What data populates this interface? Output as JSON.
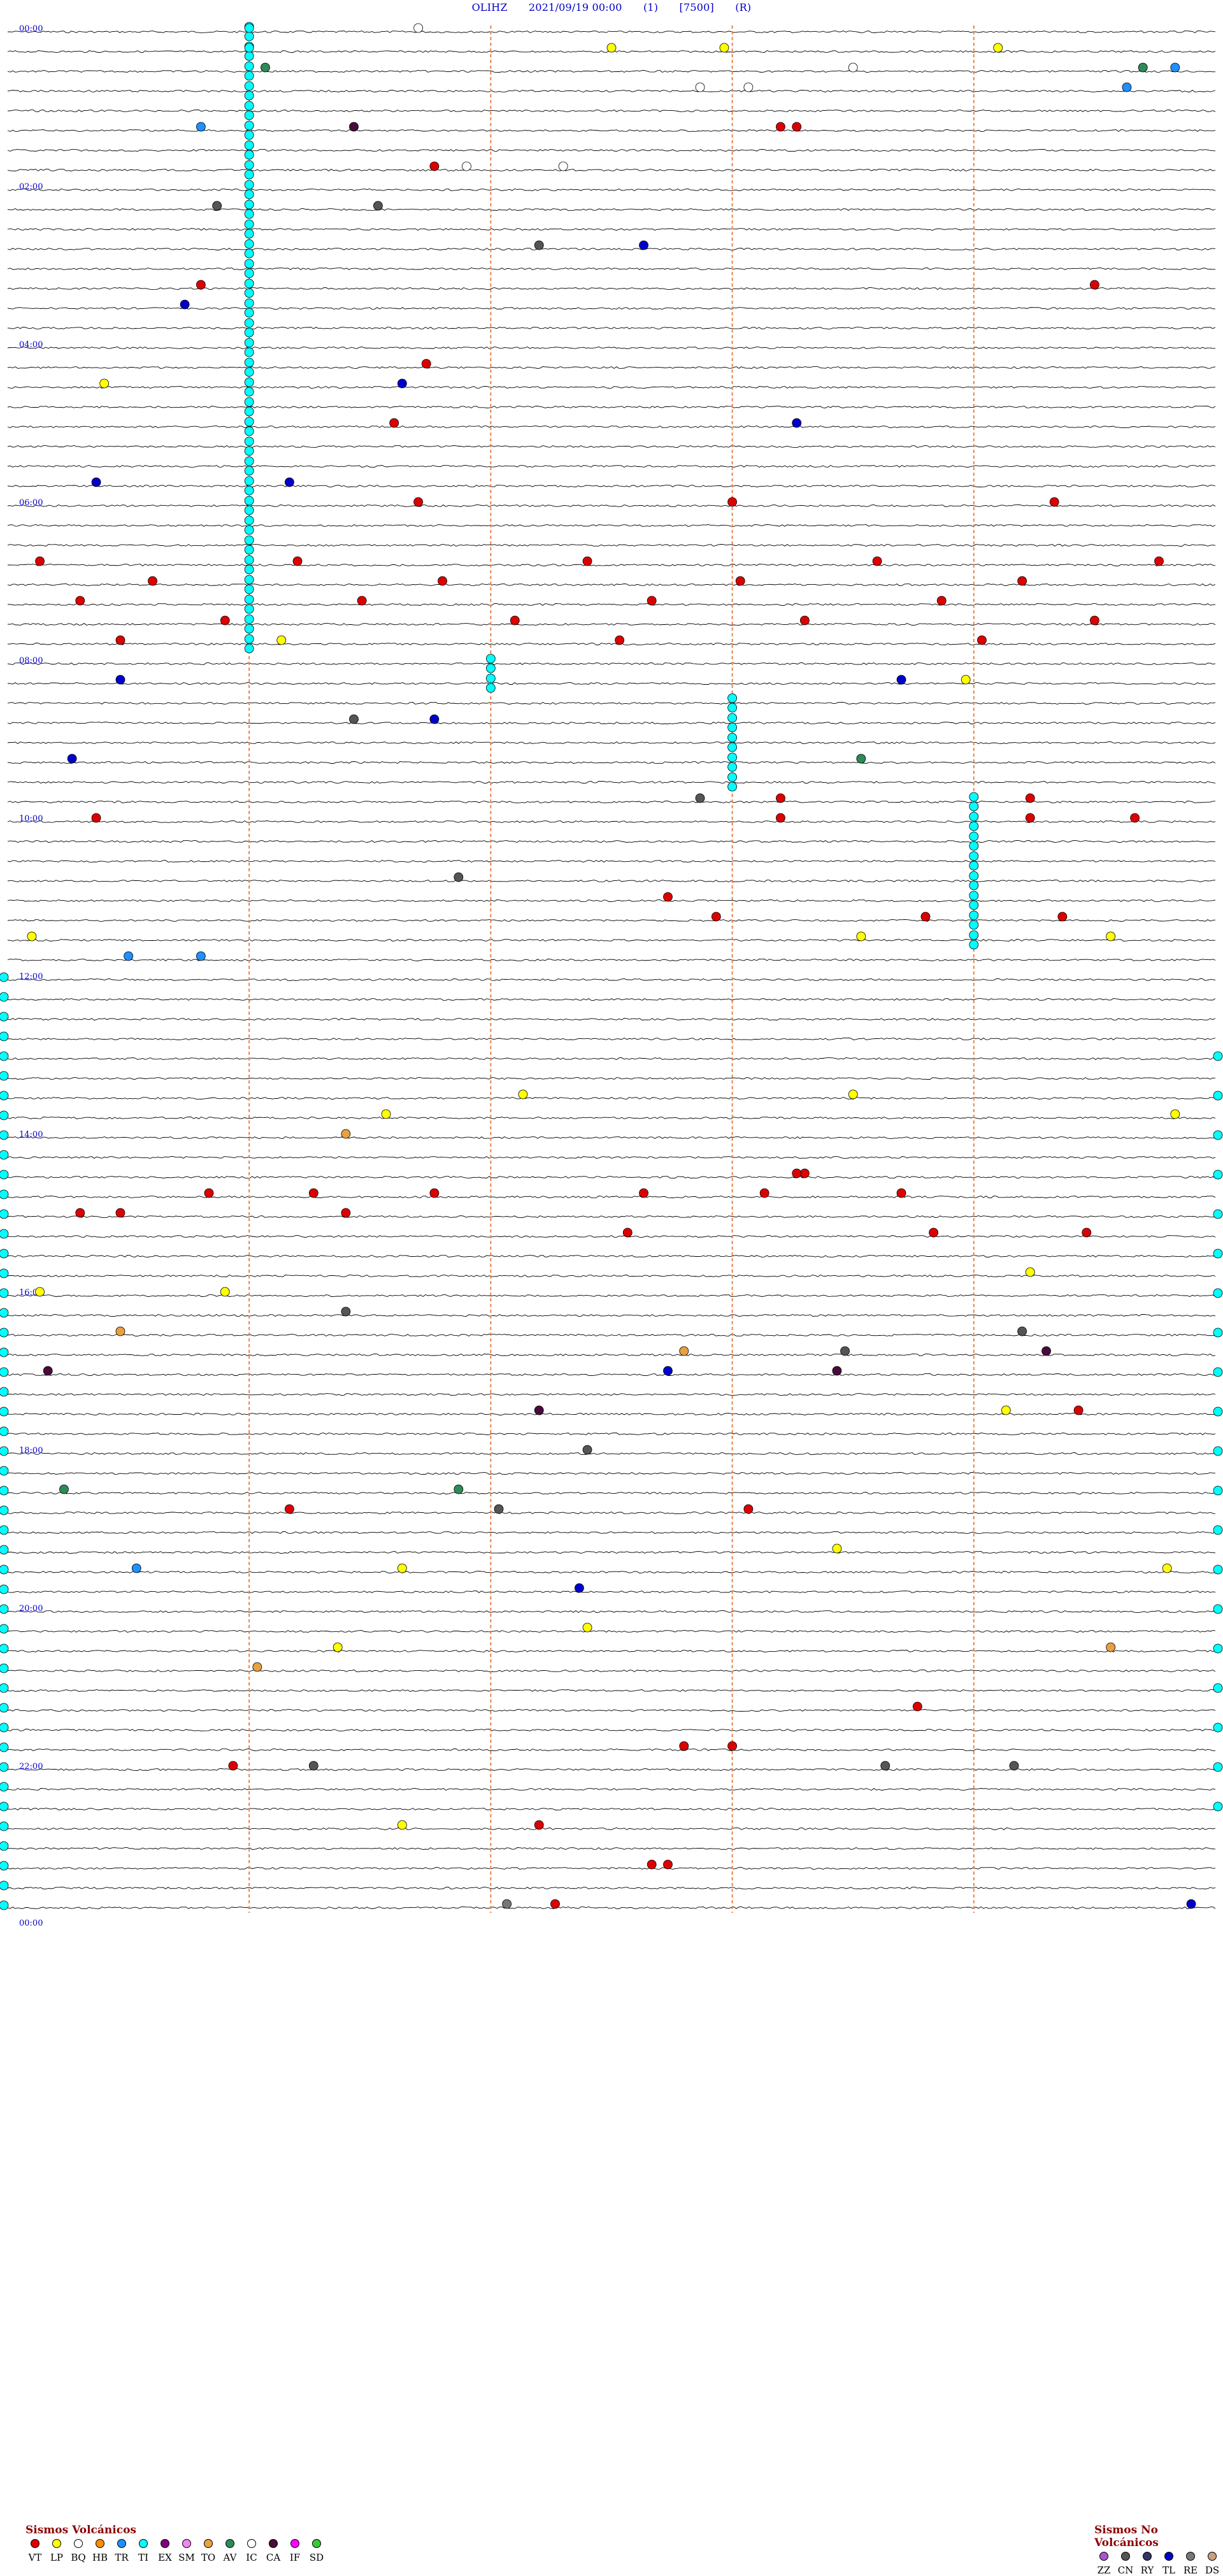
{
  "header": {
    "station": "OLIHZ",
    "datetime": "2021/09/19 00:00",
    "code1": "(1)",
    "code2": "[7500]",
    "code3": "(R)"
  },
  "chart_data": {
    "type": "helicorder",
    "rows": 96,
    "minutes_per_row": 15,
    "hour_labels": [
      "00:00",
      "02:00",
      "04:00",
      "06:00",
      "08:00",
      "10:00",
      "12:00",
      "14:00",
      "16:00",
      "18:00",
      "20:00",
      "22:00",
      "00:00"
    ],
    "marker_lines_minutes": [
      3,
      6,
      9,
      12
    ],
    "category_colors": {
      "VT": "#dd0000",
      "LP": "#ffff00",
      "BQ": "#ffffff",
      "HB": "#ff8c00",
      "TR": "#1e90ff",
      "TI": "#00ffff",
      "EX": "#800080",
      "SM": "#ee88ee",
      "TO": "#e8a040",
      "AV": "#2e8b57",
      "IC": "#ffffff",
      "CA": "#4b0a3c",
      "IF": "#ff00ff",
      "SD": "#33cc33",
      "ZZ": "#aa55cc",
      "CN": "#555555",
      "RY": "#333366",
      "TL": "#0000cc",
      "RE": "#777777",
      "DS": "#c8a080"
    },
    "events": [
      {
        "row": 0,
        "minute": 3.0,
        "type": "TI"
      },
      {
        "row": 0,
        "minute": 5.1,
        "type": "BQ"
      },
      {
        "row": 1,
        "minute": 3.0,
        "type": "TI"
      },
      {
        "row": 1,
        "minute": 12.3,
        "type": "LP"
      },
      {
        "row": 1,
        "minute": 7.5,
        "type": "LP"
      },
      {
        "row": 1,
        "minute": 8.9,
        "type": "LP"
      },
      {
        "row": 2,
        "minute": 3.2,
        "type": "AV"
      },
      {
        "row": 2,
        "minute": 14.5,
        "type": "TR"
      },
      {
        "row": 2,
        "minute": 14.1,
        "type": "AV"
      },
      {
        "row": 2,
        "minute": 10.5,
        "type": "BQ"
      },
      {
        "row": 3,
        "minute": 13.9,
        "type": "TR"
      },
      {
        "row": 3,
        "minute": 8.6,
        "type": "BQ"
      },
      {
        "row": 3,
        "minute": 9.2,
        "type": "BQ"
      },
      {
        "row": 5,
        "minute": 2.4,
        "type": "TR"
      },
      {
        "row": 5,
        "minute": 4.3,
        "type": "CA"
      },
      {
        "row": 5,
        "minute": 9.6,
        "type": "VT"
      },
      {
        "row": 5,
        "minute": 9.8,
        "type": "VT"
      },
      {
        "row": 7,
        "minute": 5.3,
        "type": "VT"
      },
      {
        "row": 7,
        "minute": 5.7,
        "type": "BQ"
      },
      {
        "row": 7,
        "minute": 6.9,
        "type": "BQ"
      },
      {
        "row": 9,
        "minute": 2.6,
        "type": "CN"
      },
      {
        "row": 9,
        "minute": 4.6,
        "type": "CN"
      },
      {
        "row": 11,
        "minute": 7.9,
        "type": "TL"
      },
      {
        "row": 11,
        "minute": 6.6,
        "type": "CN"
      },
      {
        "row": 13,
        "minute": 2.4,
        "type": "VT"
      },
      {
        "row": 13,
        "minute": 13.5,
        "type": "VT"
      },
      {
        "row": 14,
        "minute": 2.2,
        "type": "TL"
      },
      {
        "row": 17,
        "minute": 5.2,
        "type": "VT"
      },
      {
        "row": 18,
        "minute": 1.2,
        "type": "LP"
      },
      {
        "row": 18,
        "minute": 4.9,
        "type": "TL"
      },
      {
        "row": 20,
        "minute": 4.8,
        "type": "VT"
      },
      {
        "row": 20,
        "minute": 9.8,
        "type": "TL"
      },
      {
        "row": 23,
        "minute": 1.1,
        "type": "TL"
      },
      {
        "row": 23,
        "minute": 3.5,
        "type": "TL"
      },
      {
        "row": 24,
        "minute": 5.1,
        "type": "VT"
      },
      {
        "row": 24,
        "minute": 9.0,
        "type": "VT"
      },
      {
        "row": 24,
        "minute": 13.0,
        "type": "VT"
      },
      {
        "row": 27,
        "minute": 0.4,
        "type": "VT"
      },
      {
        "row": 27,
        "minute": 3.6,
        "type": "VT"
      },
      {
        "row": 27,
        "minute": 7.2,
        "type": "VT"
      },
      {
        "row": 27,
        "minute": 10.8,
        "type": "VT"
      },
      {
        "row": 27,
        "minute": 14.3,
        "type": "VT"
      },
      {
        "row": 28,
        "minute": 1.8,
        "type": "VT"
      },
      {
        "row": 28,
        "minute": 5.4,
        "type": "VT"
      },
      {
        "row": 28,
        "minute": 9.1,
        "type": "VT"
      },
      {
        "row": 28,
        "minute": 12.6,
        "type": "VT"
      },
      {
        "row": 29,
        "minute": 0.9,
        "type": "VT"
      },
      {
        "row": 29,
        "minute": 4.4,
        "type": "VT"
      },
      {
        "row": 29,
        "minute": 8.0,
        "type": "VT"
      },
      {
        "row": 29,
        "minute": 11.6,
        "type": "VT"
      },
      {
        "row": 30,
        "minute": 2.7,
        "type": "VT"
      },
      {
        "row": 30,
        "minute": 6.3,
        "type": "VT"
      },
      {
        "row": 30,
        "minute": 9.9,
        "type": "VT"
      },
      {
        "row": 30,
        "minute": 13.5,
        "type": "VT"
      },
      {
        "row": 31,
        "minute": 1.4,
        "type": "VT"
      },
      {
        "row": 31,
        "minute": 3.4,
        "type": "LP"
      },
      {
        "row": 31,
        "minute": 7.6,
        "type": "VT"
      },
      {
        "row": 31,
        "minute": 12.1,
        "type": "VT"
      },
      {
        "row": 33,
        "minute": 1.4,
        "type": "TL"
      },
      {
        "row": 33,
        "minute": 11.1,
        "type": "TL"
      },
      {
        "row": 33,
        "minute": 11.9,
        "type": "LP"
      },
      {
        "row": 35,
        "minute": 5.3,
        "type": "TL"
      },
      {
        "row": 35,
        "minute": 4.3,
        "type": "CN"
      },
      {
        "row": 37,
        "minute": 0.8,
        "type": "TL"
      },
      {
        "row": 37,
        "minute": 10.6,
        "type": "AV"
      },
      {
        "row": 39,
        "minute": 8.6,
        "type": "CN"
      },
      {
        "row": 39,
        "minute": 9.6,
        "type": "VT"
      },
      {
        "row": 39,
        "minute": 12.7,
        "type": "VT"
      },
      {
        "row": 40,
        "minute": 1.1,
        "type": "VT"
      },
      {
        "row": 40,
        "minute": 9.6,
        "type": "VT"
      },
      {
        "row": 40,
        "minute": 12.7,
        "type": "VT"
      },
      {
        "row": 40,
        "minute": 14.0,
        "type": "VT"
      },
      {
        "row": 43,
        "minute": 5.6,
        "type": "CN"
      },
      {
        "row": 44,
        "minute": 8.2,
        "type": "VT"
      },
      {
        "row": 45,
        "minute": 8.8,
        "type": "VT"
      },
      {
        "row": 45,
        "minute": 11.4,
        "type": "VT"
      },
      {
        "row": 45,
        "minute": 13.1,
        "type": "VT"
      },
      {
        "row": 46,
        "minute": 0.3,
        "type": "LP"
      },
      {
        "row": 46,
        "minute": 10.6,
        "type": "LP"
      },
      {
        "row": 46,
        "minute": 13.7,
        "type": "LP"
      },
      {
        "row": 47,
        "minute": 1.5,
        "type": "TR"
      },
      {
        "row": 47,
        "minute": 2.4,
        "type": "TR"
      },
      {
        "row": 54,
        "minute": 6.4,
        "type": "LP"
      },
      {
        "row": 54,
        "minute": 10.5,
        "type": "LP"
      },
      {
        "row": 55,
        "minute": 4.7,
        "type": "LP"
      },
      {
        "row": 55,
        "minute": 14.5,
        "type": "LP"
      },
      {
        "row": 56,
        "minute": 4.2,
        "type": "TO"
      },
      {
        "row": 58,
        "minute": 9.9,
        "type": "VT"
      },
      {
        "row": 58,
        "minute": 9.8,
        "type": "VT"
      },
      {
        "row": 59,
        "minute": 2.5,
        "type": "VT"
      },
      {
        "row": 59,
        "minute": 3.8,
        "type": "VT"
      },
      {
        "row": 59,
        "minute": 5.3,
        "type": "VT"
      },
      {
        "row": 59,
        "minute": 7.9,
        "type": "VT"
      },
      {
        "row": 59,
        "minute": 9.4,
        "type": "VT"
      },
      {
        "row": 59,
        "minute": 11.1,
        "type": "VT"
      },
      {
        "row": 60,
        "minute": 0.9,
        "type": "VT"
      },
      {
        "row": 60,
        "minute": 1.4,
        "type": "VT"
      },
      {
        "row": 60,
        "minute": 4.2,
        "type": "VT"
      },
      {
        "row": 61,
        "minute": 7.7,
        "type": "VT"
      },
      {
        "row": 61,
        "minute": 11.5,
        "type": "VT"
      },
      {
        "row": 61,
        "minute": 13.4,
        "type": "VT"
      },
      {
        "row": 63,
        "minute": 12.7,
        "type": "LP"
      },
      {
        "row": 64,
        "minute": 0.4,
        "type": "LP"
      },
      {
        "row": 64,
        "minute": 2.7,
        "type": "LP"
      },
      {
        "row": 65,
        "minute": 4.2,
        "type": "CN"
      },
      {
        "row": 66,
        "minute": 1.4,
        "type": "TO"
      },
      {
        "row": 66,
        "minute": 12.6,
        "type": "CN"
      },
      {
        "row": 67,
        "minute": 10.4,
        "type": "CN"
      },
      {
        "row": 67,
        "minute": 8.4,
        "type": "TO"
      },
      {
        "row": 67,
        "minute": 12.9,
        "type": "CA"
      },
      {
        "row": 68,
        "minute": 0.5,
        "type": "CA"
      },
      {
        "row": 68,
        "minute": 8.2,
        "type": "TL"
      },
      {
        "row": 68,
        "minute": 10.3,
        "type": "CA"
      },
      {
        "row": 70,
        "minute": 6.6,
        "type": "CA"
      },
      {
        "row": 70,
        "minute": 12.4,
        "type": "LP"
      },
      {
        "row": 70,
        "minute": 13.3,
        "type": "VT"
      },
      {
        "row": 72,
        "minute": 7.2,
        "type": "CN"
      },
      {
        "row": 74,
        "minute": 0.7,
        "type": "AV"
      },
      {
        "row": 74,
        "minute": 5.6,
        "type": "AV"
      },
      {
        "row": 75,
        "minute": 3.5,
        "type": "VT"
      },
      {
        "row": 75,
        "minute": 6.1,
        "type": "CN"
      },
      {
        "row": 75,
        "minute": 9.2,
        "type": "VT"
      },
      {
        "row": 77,
        "minute": 10.3,
        "type": "LP"
      },
      {
        "row": 78,
        "minute": 1.6,
        "type": "TR"
      },
      {
        "row": 78,
        "minute": 4.9,
        "type": "LP"
      },
      {
        "row": 78,
        "minute": 14.4,
        "type": "LP"
      },
      {
        "row": 79,
        "minute": 7.1,
        "type": "TL"
      },
      {
        "row": 81,
        "minute": 7.2,
        "type": "LP"
      },
      {
        "row": 82,
        "minute": 4.1,
        "type": "LP"
      },
      {
        "row": 82,
        "minute": 13.7,
        "type": "TO"
      },
      {
        "row": 83,
        "minute": 3.1,
        "type": "TO"
      },
      {
        "row": 85,
        "minute": 11.3,
        "type": "VT"
      },
      {
        "row": 87,
        "minute": 8.4,
        "type": "VT"
      },
      {
        "row": 87,
        "minute": 9.0,
        "type": "VT"
      },
      {
        "row": 88,
        "minute": 2.8,
        "type": "VT"
      },
      {
        "row": 88,
        "minute": 3.8,
        "type": "CN"
      },
      {
        "row": 88,
        "minute": 10.9,
        "type": "CN"
      },
      {
        "row": 88,
        "minute": 12.5,
        "type": "CN"
      },
      {
        "row": 91,
        "minute": 4.9,
        "type": "LP"
      },
      {
        "row": 91,
        "minute": 6.6,
        "type": "VT"
      },
      {
        "row": 93,
        "minute": 8.0,
        "type": "VT"
      },
      {
        "row": 93,
        "minute": 8.2,
        "type": "VT"
      },
      {
        "row": 95,
        "minute": 6.2,
        "type": "RE"
      },
      {
        "row": 95,
        "minute": 6.8,
        "type": "VT"
      },
      {
        "row": 95,
        "minute": 14.7,
        "type": "TL"
      }
    ],
    "tremor_columns": [
      {
        "minute": 3.0,
        "from_row": 0,
        "to_row": 31
      },
      {
        "minute": 6.0,
        "from_row": 32,
        "to_row": 33
      },
      {
        "minute": 9.0,
        "from_row": 34,
        "to_row": 38
      },
      {
        "minute": 12.0,
        "from_row": 39,
        "to_row": 46
      }
    ],
    "tremor_left_rows": [
      48,
      95
    ],
    "tremor_right_rows": [
      52,
      91
    ]
  },
  "legend": {
    "volcanic": {
      "title": "Sismos Volcánicos",
      "items": [
        "VT",
        "LP",
        "BQ",
        "HB",
        "TR",
        "TI",
        "EX",
        "SM",
        "TO",
        "AV",
        "IC",
        "CA",
        "IF",
        "SD"
      ]
    },
    "non_volcanic": {
      "title": "Sismos No Volcánicos",
      "items": [
        "ZZ",
        "CN",
        "RY",
        "TL",
        "RE",
        "DS"
      ]
    }
  }
}
